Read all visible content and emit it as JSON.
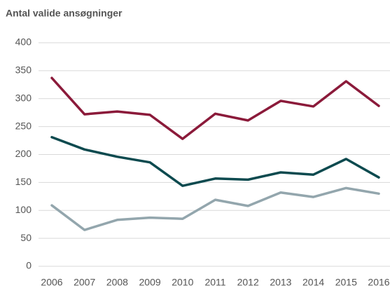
{
  "chart_data": {
    "type": "line",
    "title": "Antal valide ansøgninger",
    "categories": [
      "2006",
      "2007",
      "2008",
      "2009",
      "2010",
      "2011",
      "2012",
      "2013",
      "2014",
      "2015",
      "2016"
    ],
    "series": [
      {
        "color": "#8b1a3a",
        "values": [
          337,
          272,
          277,
          271,
          228,
          273,
          261,
          296,
          286,
          331,
          287
        ]
      },
      {
        "color": "#0d4a4f",
        "values": [
          231,
          209,
          196,
          186,
          144,
          157,
          155,
          168,
          164,
          192,
          159
        ]
      },
      {
        "color": "#93a6ad",
        "values": [
          109,
          65,
          83,
          87,
          85,
          119,
          108,
          132,
          124,
          140,
          130
        ]
      }
    ],
    "ylim": [
      0,
      400
    ],
    "yticks": [
      0,
      50,
      100,
      150,
      200,
      250,
      300,
      350,
      400
    ],
    "grid": true
  }
}
